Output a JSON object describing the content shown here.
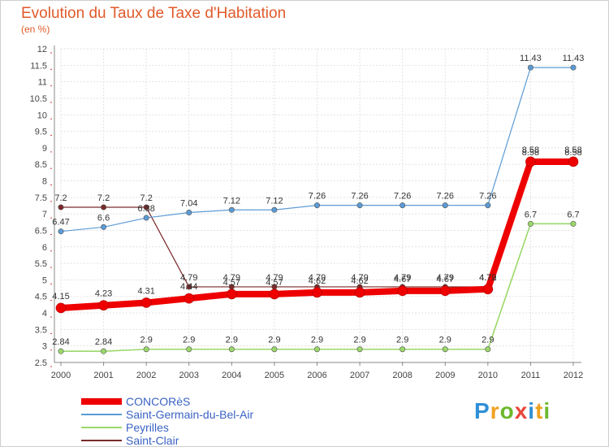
{
  "title": "Evolution du Taux de Taxe d'Habitation",
  "subtitle": "(en %)",
  "logo": {
    "text": "Proxiti",
    "letters": [
      "P",
      "r",
      "o",
      "x",
      "i",
      "t",
      "i"
    ],
    "colors": [
      "#2f8fd8",
      "#f0a020",
      "#6cb82e",
      "#e8463a",
      "#2f8fd8",
      "#f0a020",
      "#6cb82e"
    ]
  },
  "chart_data": {
    "type": "line",
    "x": [
      "2000",
      "2001",
      "2002",
      "2003",
      "2004",
      "2005",
      "2006",
      "2007",
      "2008",
      "2009",
      "2010",
      "2011",
      "2012"
    ],
    "ylim": [
      2.5,
      12
    ],
    "yticks": [
      "2.5",
      "3",
      "3.5",
      "4",
      "4.5",
      "5",
      "5.5",
      "6",
      "6.5",
      "7",
      "7.5",
      "8",
      "8.5",
      "9",
      "9.5",
      "10",
      "10.5",
      "11",
      "11.5",
      "12"
    ],
    "grid": true,
    "legend_position": "bottom-left",
    "series": [
      {
        "name": "Saint-Clair",
        "color": "#7a2a2a",
        "width": 1.2,
        "values": [
          7.2,
          7.2,
          7.2,
          4.79,
          4.79,
          4.79,
          4.79,
          4.79,
          4.79,
          4.79,
          4.79,
          8.58,
          8.58
        ],
        "labels": [
          "7.2",
          "7.2",
          "7.2",
          "4.79",
          "4.79",
          "4.79",
          "4.79",
          "4.79",
          "4.79",
          "4.79",
          "4.79",
          "8.58",
          "8.58"
        ]
      },
      {
        "name": "Saint-Germain-du-Bel-Air",
        "color": "#5b9bd5",
        "width": 1.2,
        "values": [
          6.47,
          6.6,
          6.88,
          7.04,
          7.12,
          7.12,
          7.26,
          7.26,
          7.26,
          7.26,
          7.26,
          11.43,
          11.43
        ],
        "labels": [
          "6.47",
          "6.6",
          "6.88",
          "7.04",
          "7.12",
          "7.12",
          "7.26",
          "7.26",
          "7.26",
          "7.26",
          "7.26",
          "11.43",
          "11.43"
        ]
      },
      {
        "name": "Peyrilles",
        "color": "#9bd86a",
        "width": 1.6,
        "values": [
          2.84,
          2.84,
          2.9,
          2.9,
          2.9,
          2.9,
          2.9,
          2.9,
          2.9,
          2.9,
          2.9,
          6.7,
          6.7
        ],
        "labels": [
          "2.84",
          "2.84",
          "2.9",
          "2.9",
          "2.9",
          "2.9",
          "2.9",
          "2.9",
          "2.9",
          "2.9",
          "2.9",
          "6.7",
          "6.7"
        ]
      },
      {
        "name": "CONCORèS",
        "color": "#ee0000",
        "width": 8,
        "values": [
          4.15,
          4.23,
          4.31,
          4.44,
          4.57,
          4.57,
          4.62,
          4.62,
          4.67,
          4.67,
          4.72,
          8.58,
          8.58
        ],
        "labels": [
          "4.15",
          "4.23",
          "4.31",
          "4.44",
          "4.57",
          "4.57",
          "4.62",
          "4.62",
          "4.67",
          "4.67",
          "4.72",
          "8.58",
          "8.58"
        ]
      }
    ],
    "legend_order": [
      "CONCORèS",
      "Saint-Germain-du-Bel-Air",
      "Peyrilles",
      "Saint-Clair"
    ]
  }
}
